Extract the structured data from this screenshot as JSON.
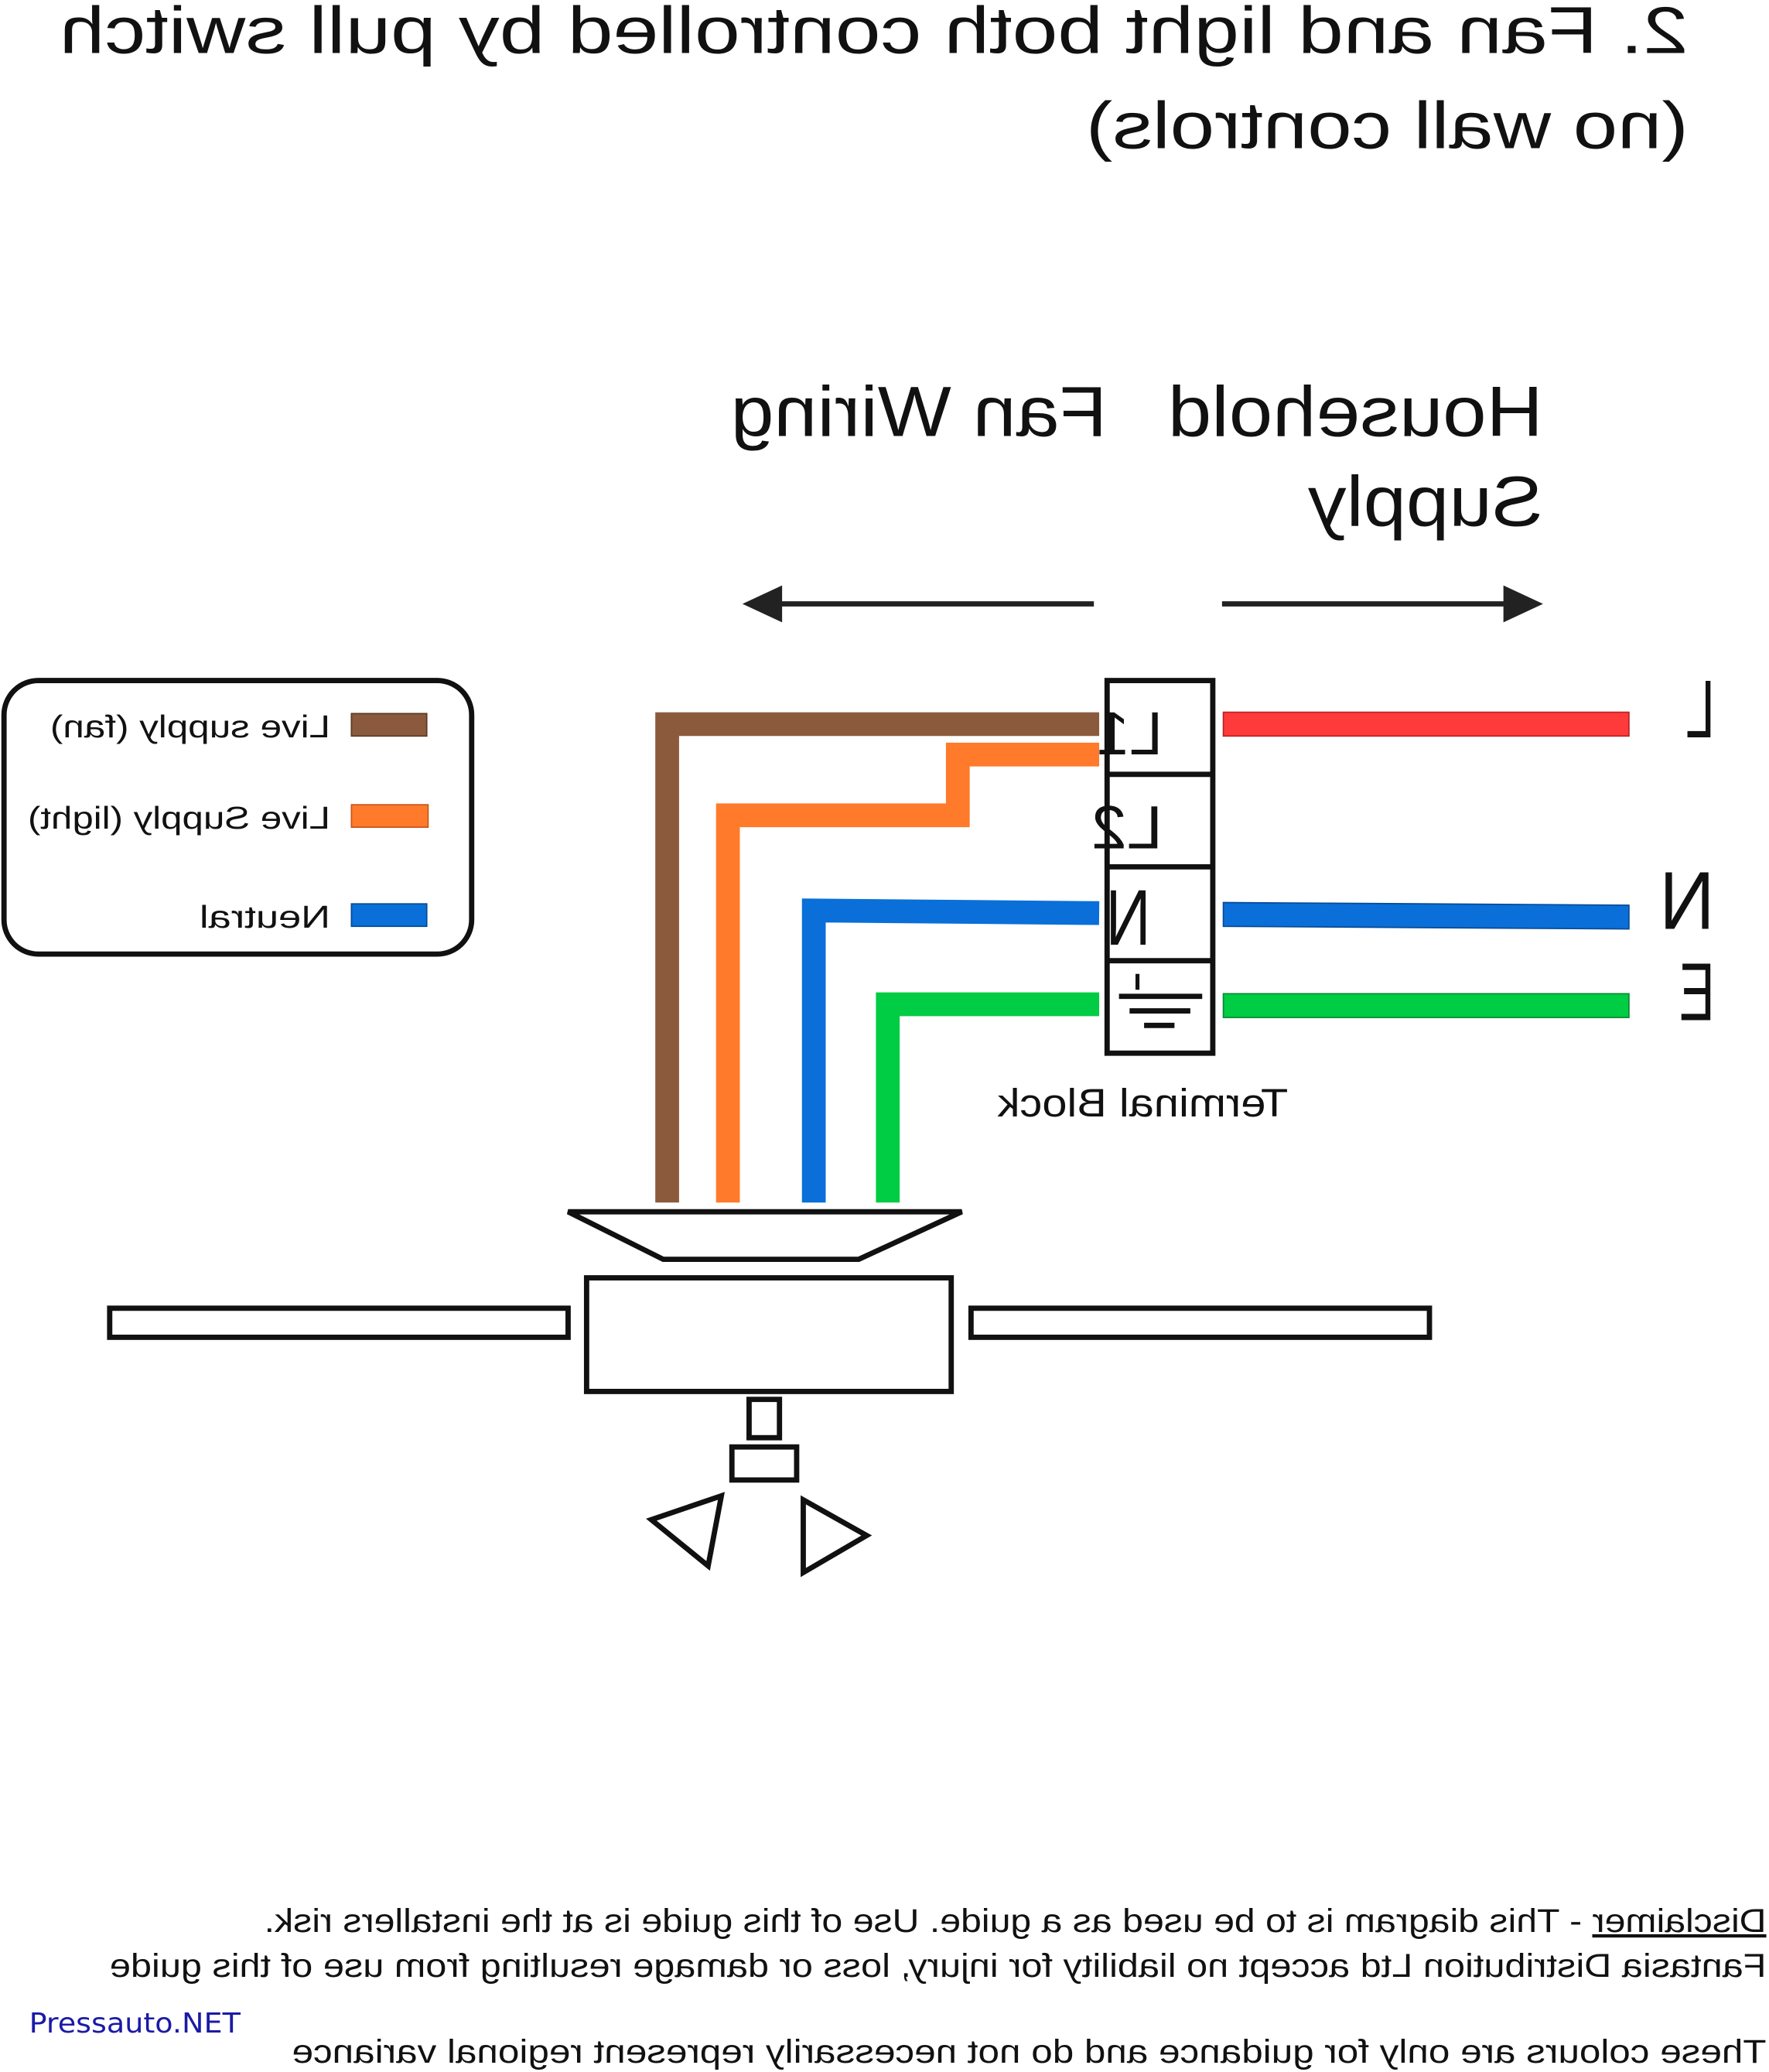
{
  "title": {
    "line1": "2. Fan and light both controlled by pull switch",
    "line2": "(no wall controls)"
  },
  "sections": {
    "fan_wiring": "Fan Wiring",
    "household_line1": "Household",
    "household_line2": "Supply"
  },
  "legend": {
    "items": [
      {
        "label": "Live supply (fan)",
        "color": "#8B5A3C"
      },
      {
        "label": "Live Supply (light)",
        "color": "#FF7A2A"
      },
      {
        "label": "Neutral",
        "color": "#0A6FD8"
      }
    ]
  },
  "terminal_block": {
    "label": "Terminal Block",
    "cells": [
      "L1",
      "L2",
      "N",
      "earth-icon"
    ]
  },
  "supply_labels": [
    "L",
    "N",
    "E"
  ],
  "wire_colors": {
    "live_fan": "#8B5A3C",
    "live_light": "#FF7A2A",
    "neutral": "#0A6FD8",
    "earth": "#00CC44",
    "supply_live": "#FF3A3A"
  },
  "mirrored": true,
  "disclaimer": {
    "heading": "Disclaimer",
    "line1_rest": " - This diagram is to be used as a guide.  Use of this guide is at the installers risk.",
    "line2": "Fantasia Distribution Ltd accept no liability for injury, loss or damage resulting from use of this guide",
    "line3": "These colours are only for guidance and do not necessarily represent regional variance"
  },
  "watermark": "Pressauto.NET"
}
